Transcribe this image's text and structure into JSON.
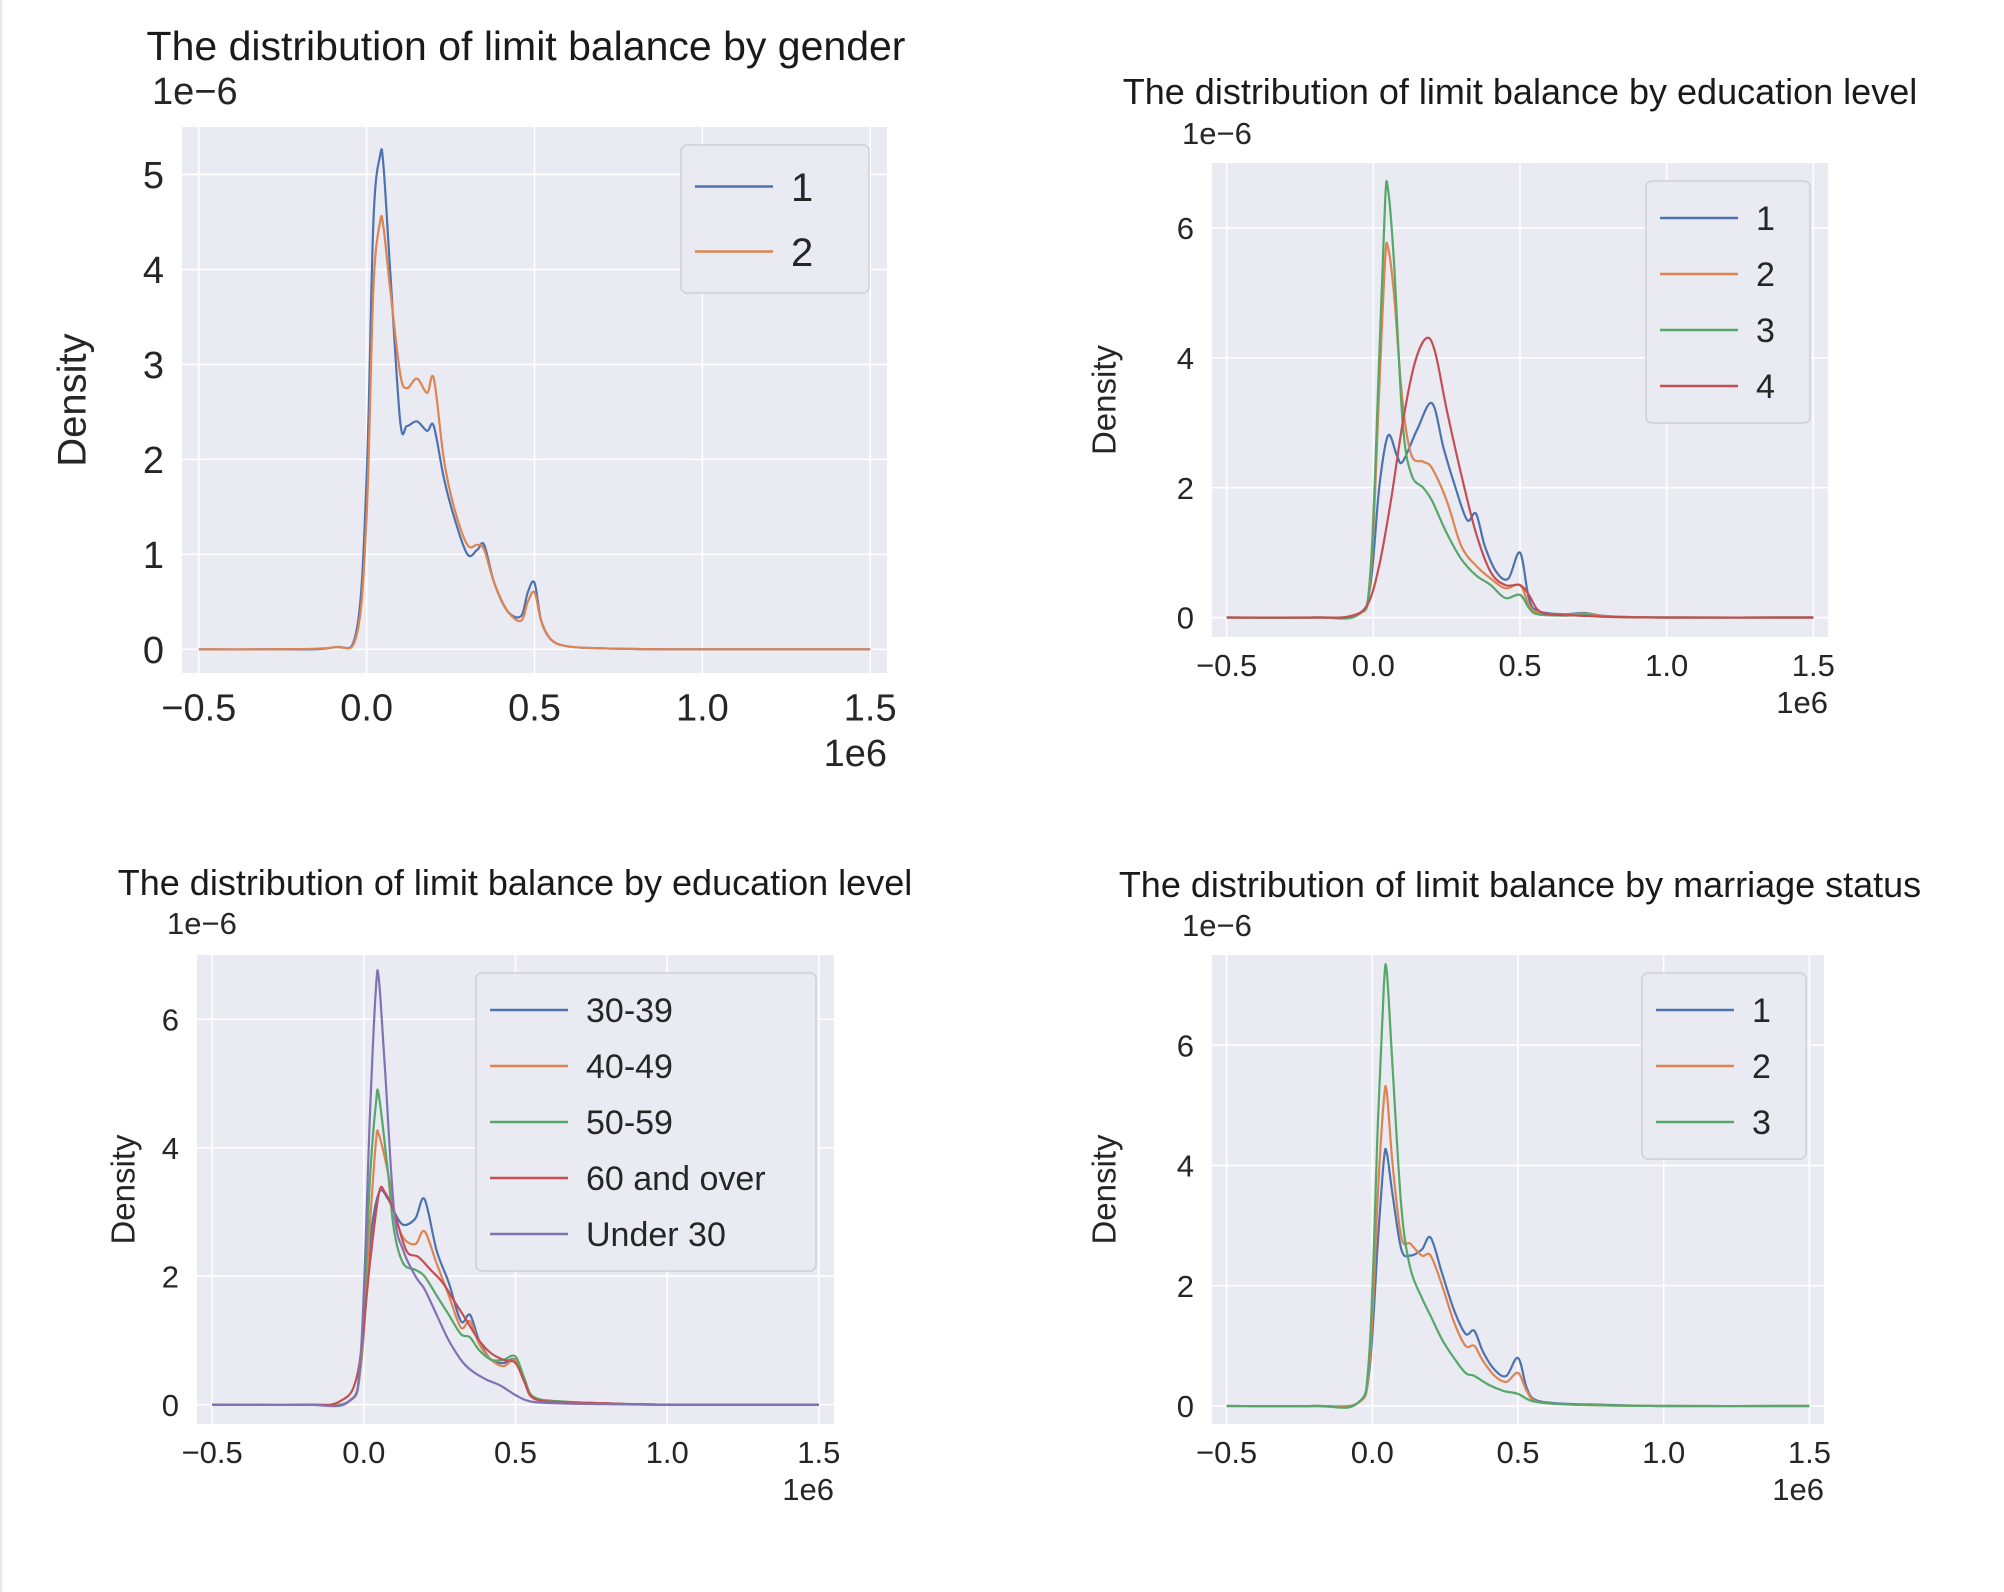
{
  "chart_data": [
    {
      "type": "line",
      "title": "The distribution of limit balance by gender",
      "ylabel": "Density",
      "y_multiplier_label": "1e−6",
      "x_multiplier_label": "1e6",
      "xlim": [
        -0.55,
        1.55
      ],
      "ylim": [
        -0.25,
        5.5
      ],
      "xticks": [
        -0.5,
        0.0,
        0.5,
        1.0,
        1.5
      ],
      "xtick_labels": [
        "−0.5",
        "0.0",
        "0.5",
        "1.0",
        "1.5"
      ],
      "yticks": [
        0,
        1,
        2,
        3,
        4,
        5
      ],
      "ytick_labels": [
        "0",
        "1",
        "2",
        "3",
        "4",
        "5"
      ],
      "grid": true,
      "legend_position": "top-right",
      "series": [
        {
          "name": "1",
          "color": "#4c72b0",
          "x": [
            -0.5,
            -0.3,
            -0.1,
            -0.03,
            0.0,
            0.02,
            0.04,
            0.05,
            0.07,
            0.1,
            0.12,
            0.15,
            0.18,
            0.2,
            0.23,
            0.26,
            0.3,
            0.33,
            0.35,
            0.38,
            0.42,
            0.46,
            0.48,
            0.5,
            0.52,
            0.55,
            0.6,
            0.7,
            0.9,
            1.2,
            1.5
          ],
          "y": [
            0,
            0,
            0.02,
            0.2,
            1.8,
            4.5,
            5.2,
            5.1,
            4.0,
            2.4,
            2.35,
            2.4,
            2.3,
            2.35,
            1.8,
            1.4,
            1.0,
            1.05,
            1.1,
            0.7,
            0.4,
            0.35,
            0.6,
            0.7,
            0.3,
            0.1,
            0.03,
            0.01,
            0,
            0,
            0
          ]
        },
        {
          "name": "2",
          "color": "#dd8452",
          "x": [
            -0.5,
            -0.3,
            -0.1,
            -0.03,
            0.0,
            0.02,
            0.04,
            0.05,
            0.07,
            0.1,
            0.12,
            0.15,
            0.18,
            0.2,
            0.23,
            0.26,
            0.3,
            0.33,
            0.35,
            0.38,
            0.42,
            0.46,
            0.48,
            0.5,
            0.52,
            0.55,
            0.6,
            0.7,
            0.9,
            1.2,
            1.5
          ],
          "y": [
            0,
            0,
            0.02,
            0.15,
            1.4,
            3.8,
            4.5,
            4.45,
            3.8,
            2.9,
            2.75,
            2.85,
            2.7,
            2.85,
            2.0,
            1.5,
            1.1,
            1.1,
            1.05,
            0.7,
            0.4,
            0.3,
            0.5,
            0.6,
            0.3,
            0.1,
            0.03,
            0.01,
            0,
            0,
            0
          ]
        }
      ]
    },
    {
      "type": "line",
      "title": "The distribution of limit balance by education level",
      "ylabel": "Density",
      "y_multiplier_label": "1e−6",
      "x_multiplier_label": "1e6",
      "xlim": [
        -0.55,
        1.55
      ],
      "ylim": [
        -0.3,
        7.0
      ],
      "xticks": [
        -0.5,
        0.0,
        0.5,
        1.0,
        1.5
      ],
      "xtick_labels": [
        "−0.5",
        "0.0",
        "0.5",
        "1.0",
        "1.5"
      ],
      "yticks": [
        0,
        2,
        4,
        6
      ],
      "ytick_labels": [
        "0",
        "2",
        "4",
        "6"
      ],
      "grid": true,
      "legend_position": "top-right",
      "series": [
        {
          "name": "1",
          "color": "#4c72b0",
          "x": [
            -0.5,
            -0.2,
            -0.05,
            -0.01,
            0.02,
            0.05,
            0.08,
            0.1,
            0.15,
            0.2,
            0.24,
            0.28,
            0.32,
            0.35,
            0.38,
            0.42,
            0.46,
            0.5,
            0.53,
            0.56,
            0.65,
            0.72,
            0.8,
            1.0,
            1.5
          ],
          "y": [
            0,
            0,
            0.05,
            0.5,
            2.0,
            2.8,
            2.5,
            2.4,
            2.9,
            3.3,
            2.6,
            2.0,
            1.5,
            1.6,
            1.1,
            0.7,
            0.6,
            1.0,
            0.3,
            0.1,
            0.05,
            0.07,
            0.02,
            0,
            0
          ]
        },
        {
          "name": "2",
          "color": "#dd8452",
          "x": [
            -0.5,
            -0.2,
            -0.05,
            -0.01,
            0.02,
            0.04,
            0.05,
            0.07,
            0.1,
            0.13,
            0.17,
            0.2,
            0.25,
            0.3,
            0.35,
            0.4,
            0.45,
            0.5,
            0.53,
            0.56,
            0.65,
            0.72,
            0.8,
            1.0,
            1.5
          ],
          "y": [
            0,
            0,
            0.05,
            0.6,
            3.5,
            5.5,
            5.7,
            5.0,
            3.3,
            2.5,
            2.4,
            2.3,
            1.8,
            1.1,
            0.8,
            0.6,
            0.45,
            0.5,
            0.2,
            0.08,
            0.04,
            0.06,
            0.02,
            0,
            0
          ]
        },
        {
          "name": "3",
          "color": "#55a868",
          "x": [
            -0.5,
            -0.2,
            -0.05,
            -0.01,
            0.02,
            0.04,
            0.05,
            0.07,
            0.1,
            0.13,
            0.17,
            0.2,
            0.25,
            0.3,
            0.35,
            0.4,
            0.45,
            0.5,
            0.53,
            0.56,
            0.65,
            0.72,
            0.8,
            1.0,
            1.5
          ],
          "y": [
            0,
            0,
            0.05,
            0.7,
            4.0,
            6.4,
            6.6,
            5.5,
            3.0,
            2.2,
            2.0,
            1.8,
            1.3,
            0.9,
            0.65,
            0.5,
            0.3,
            0.35,
            0.15,
            0.05,
            0.03,
            0.04,
            0.01,
            0,
            0
          ]
        },
        {
          "name": "4",
          "color": "#c44e52",
          "x": [
            -0.5,
            -0.2,
            -0.08,
            -0.02,
            0.02,
            0.06,
            0.1,
            0.14,
            0.18,
            0.21,
            0.25,
            0.3,
            0.35,
            0.4,
            0.45,
            0.5,
            0.53,
            0.56,
            0.6,
            0.7,
            0.8,
            1.0,
            1.5
          ],
          "y": [
            0,
            0,
            0.02,
            0.2,
            0.8,
            1.8,
            3.0,
            3.9,
            4.3,
            4.1,
            3.2,
            2.2,
            1.3,
            0.7,
            0.5,
            0.5,
            0.35,
            0.12,
            0.05,
            0.03,
            0.01,
            0,
            0
          ]
        }
      ]
    },
    {
      "type": "line",
      "title": "The distribution of limit balance by education level",
      "ylabel": "Density",
      "y_multiplier_label": "1e−6",
      "x_multiplier_label": "1e6",
      "xlim": [
        -0.55,
        1.55
      ],
      "ylim": [
        -0.3,
        7.0
      ],
      "xticks": [
        -0.5,
        0.0,
        0.5,
        1.0,
        1.5
      ],
      "xtick_labels": [
        "−0.5",
        "0.0",
        "0.5",
        "1.0",
        "1.5"
      ],
      "yticks": [
        0,
        2,
        4,
        6
      ],
      "ytick_labels": [
        "0",
        "2",
        "4",
        "6"
      ],
      "grid": true,
      "legend_position": "top-right",
      "series": [
        {
          "name": "30-39",
          "color": "#4c72b0",
          "x": [
            -0.5,
            -0.2,
            -0.05,
            -0.01,
            0.02,
            0.05,
            0.08,
            0.1,
            0.13,
            0.17,
            0.2,
            0.24,
            0.28,
            0.32,
            0.35,
            0.38,
            0.42,
            0.46,
            0.5,
            0.53,
            0.56,
            0.65,
            0.8,
            1.0,
            1.5
          ],
          "y": [
            0,
            0,
            0.05,
            0.6,
            2.5,
            3.3,
            3.2,
            3.0,
            2.8,
            2.9,
            3.2,
            2.4,
            1.9,
            1.3,
            1.4,
            1.0,
            0.7,
            0.65,
            0.7,
            0.35,
            0.1,
            0.05,
            0.02,
            0,
            0
          ]
        },
        {
          "name": "40-49",
          "color": "#dd8452",
          "x": [
            -0.5,
            -0.2,
            -0.05,
            -0.01,
            0.02,
            0.04,
            0.05,
            0.08,
            0.1,
            0.13,
            0.17,
            0.2,
            0.24,
            0.28,
            0.32,
            0.35,
            0.38,
            0.42,
            0.46,
            0.5,
            0.53,
            0.56,
            0.65,
            0.8,
            1.0,
            1.5
          ],
          "y": [
            0,
            0,
            0.05,
            0.6,
            2.8,
            4.1,
            4.2,
            3.6,
            3.0,
            2.6,
            2.5,
            2.7,
            2.2,
            1.7,
            1.2,
            1.3,
            0.95,
            0.7,
            0.6,
            0.7,
            0.35,
            0.1,
            0.05,
            0.02,
            0,
            0
          ]
        },
        {
          "name": "50-59",
          "color": "#55a868",
          "x": [
            -0.5,
            -0.2,
            -0.05,
            -0.01,
            0.02,
            0.04,
            0.05,
            0.08,
            0.1,
            0.13,
            0.17,
            0.2,
            0.24,
            0.28,
            0.32,
            0.35,
            0.38,
            0.42,
            0.46,
            0.5,
            0.53,
            0.56,
            0.65,
            0.8,
            1.0,
            1.5
          ],
          "y": [
            0,
            0,
            0.05,
            0.7,
            3.5,
            4.7,
            4.8,
            3.6,
            2.7,
            2.2,
            2.1,
            2.0,
            1.7,
            1.4,
            1.1,
            1.05,
            0.85,
            0.7,
            0.7,
            0.75,
            0.4,
            0.12,
            0.05,
            0.02,
            0,
            0
          ]
        },
        {
          "name": "60 and over",
          "color": "#c44e52",
          "x": [
            -0.5,
            -0.2,
            -0.08,
            -0.02,
            0.02,
            0.05,
            0.07,
            0.1,
            0.14,
            0.18,
            0.22,
            0.26,
            0.3,
            0.34,
            0.38,
            0.42,
            0.46,
            0.5,
            0.53,
            0.56,
            0.65,
            0.8,
            1.0,
            1.5
          ],
          "y": [
            0,
            0,
            0.05,
            0.5,
            2.2,
            3.3,
            3.3,
            3.0,
            2.4,
            2.3,
            2.1,
            1.9,
            1.6,
            1.3,
            1.0,
            0.8,
            0.7,
            0.65,
            0.35,
            0.1,
            0.04,
            0.02,
            0,
            0
          ]
        },
        {
          "name": "Under 30",
          "color": "#8172b3",
          "x": [
            -0.5,
            -0.2,
            -0.05,
            -0.01,
            0.02,
            0.04,
            0.05,
            0.07,
            0.1,
            0.13,
            0.17,
            0.2,
            0.24,
            0.28,
            0.32,
            0.35,
            0.4,
            0.45,
            0.5,
            0.55,
            0.65,
            0.8,
            1.0,
            1.5
          ],
          "y": [
            0,
            0,
            0.05,
            0.8,
            4.5,
            6.5,
            6.6,
            5.2,
            3.0,
            2.4,
            2.0,
            1.8,
            1.4,
            1.0,
            0.7,
            0.55,
            0.4,
            0.3,
            0.15,
            0.05,
            0.02,
            0.01,
            0,
            0
          ]
        }
      ]
    },
    {
      "type": "line",
      "title": "The distribution of limit balance by marriage status",
      "ylabel": "Density",
      "y_multiplier_label": "1e−6",
      "x_multiplier_label": "1e6",
      "xlim": [
        -0.55,
        1.55
      ],
      "ylim": [
        -0.3,
        7.5
      ],
      "xticks": [
        -0.5,
        0.0,
        0.5,
        1.0,
        1.5
      ],
      "xtick_labels": [
        "−0.5",
        "0.0",
        "0.5",
        "1.0",
        "1.5"
      ],
      "yticks": [
        0,
        2,
        4,
        6
      ],
      "ytick_labels": [
        "0",
        "2",
        "4",
        "6"
      ],
      "grid": true,
      "legend_position": "top-right",
      "series": [
        {
          "name": "1",
          "color": "#4c72b0",
          "x": [
            -0.5,
            -0.2,
            -0.05,
            -0.01,
            0.02,
            0.04,
            0.05,
            0.07,
            0.1,
            0.13,
            0.17,
            0.2,
            0.24,
            0.28,
            0.32,
            0.35,
            0.38,
            0.42,
            0.46,
            0.5,
            0.53,
            0.56,
            0.65,
            0.8,
            1.0,
            1.5
          ],
          "y": [
            0,
            0,
            0.05,
            0.6,
            2.8,
            4.1,
            4.2,
            3.5,
            2.6,
            2.5,
            2.6,
            2.8,
            2.2,
            1.6,
            1.2,
            1.25,
            0.9,
            0.6,
            0.5,
            0.8,
            0.3,
            0.1,
            0.04,
            0.02,
            0,
            0
          ]
        },
        {
          "name": "2",
          "color": "#dd8452",
          "x": [
            -0.5,
            -0.2,
            -0.05,
            -0.01,
            0.02,
            0.04,
            0.05,
            0.07,
            0.1,
            0.13,
            0.17,
            0.2,
            0.24,
            0.28,
            0.32,
            0.35,
            0.38,
            0.42,
            0.46,
            0.5,
            0.53,
            0.56,
            0.65,
            0.8,
            1.0,
            1.5
          ],
          "y": [
            0,
            0,
            0.05,
            0.7,
            3.6,
            5.1,
            5.2,
            4.0,
            2.8,
            2.7,
            2.5,
            2.5,
            2.0,
            1.4,
            1.0,
            1.0,
            0.75,
            0.5,
            0.4,
            0.55,
            0.25,
            0.08,
            0.03,
            0.01,
            0,
            0
          ]
        },
        {
          "name": "3",
          "color": "#55a868",
          "x": [
            -0.5,
            -0.2,
            -0.05,
            -0.01,
            0.02,
            0.04,
            0.05,
            0.07,
            0.1,
            0.13,
            0.17,
            0.2,
            0.24,
            0.28,
            0.32,
            0.35,
            0.4,
            0.45,
            0.5,
            0.55,
            0.65,
            0.8,
            1.0,
            1.5
          ],
          "y": [
            0,
            0,
            0.05,
            0.9,
            4.8,
            7.0,
            7.2,
            5.6,
            3.3,
            2.3,
            1.8,
            1.5,
            1.1,
            0.8,
            0.55,
            0.5,
            0.35,
            0.25,
            0.2,
            0.08,
            0.03,
            0.01,
            0,
            0
          ]
        }
      ]
    }
  ]
}
